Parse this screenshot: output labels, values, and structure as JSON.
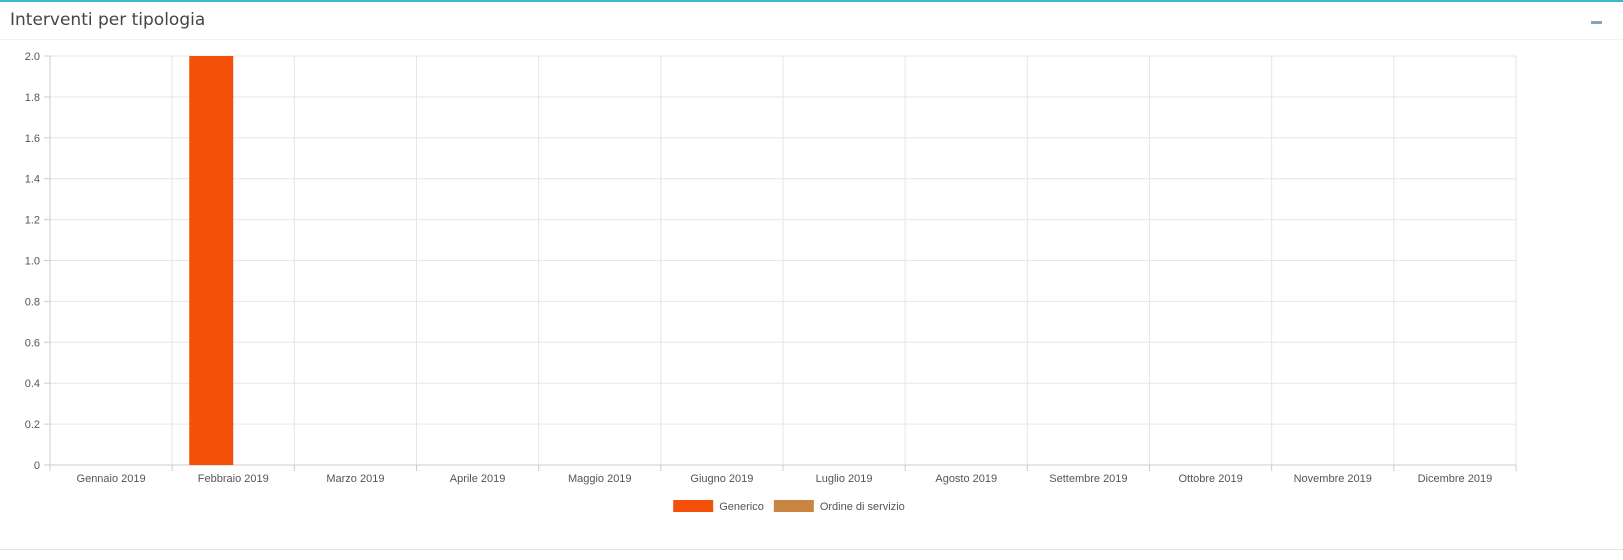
{
  "panel": {
    "title": "Interventi per tipologia",
    "collapse_icon": "minus-icon"
  },
  "chart_data": {
    "type": "bar",
    "categories": [
      "Gennaio 2019",
      "Febbraio 2019",
      "Marzo 2019",
      "Aprile 2019",
      "Maggio 2019",
      "Giugno 2019",
      "Luglio 2019",
      "Agosto 2019",
      "Settembre 2019",
      "Ottobre 2019",
      "Novembre 2019",
      "Dicembre 2019"
    ],
    "series": [
      {
        "name": "Generico",
        "color": "#f5500a",
        "values": [
          0,
          2,
          0,
          0,
          0,
          0,
          0,
          0,
          0,
          0,
          0,
          0
        ]
      },
      {
        "name": "Ordine di servizio",
        "color": "#c88541",
        "values": [
          0,
          0,
          0,
          0,
          0,
          0,
          0,
          0,
          0,
          0,
          0,
          0
        ]
      }
    ],
    "ylim": [
      0,
      2
    ],
    "yticks": [
      "0",
      "0.2",
      "0.4",
      "0.6",
      "0.8",
      "1.0",
      "1.2",
      "1.4",
      "1.6",
      "1.8",
      "2.0"
    ],
    "grid": true,
    "legend_position": "bottom"
  }
}
